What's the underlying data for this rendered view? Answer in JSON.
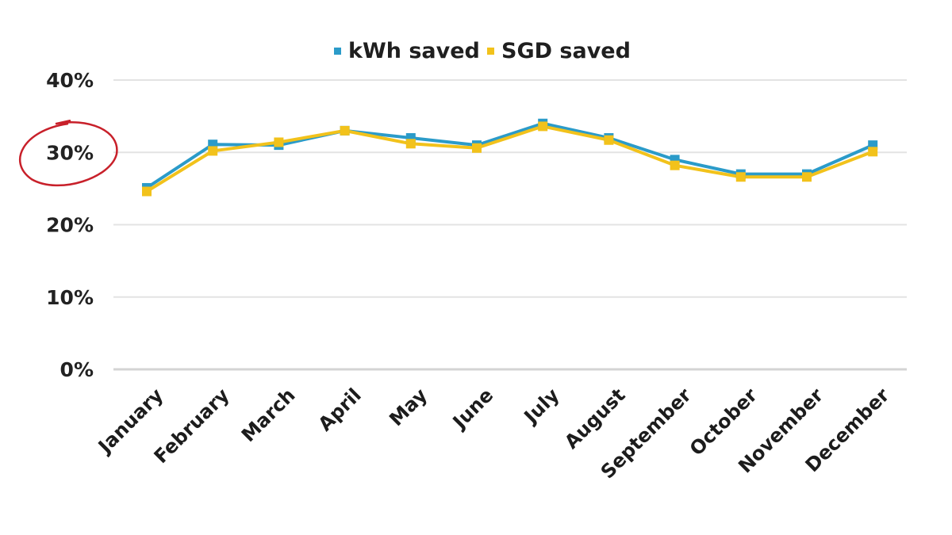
{
  "chart_data": {
    "type": "line",
    "title": "",
    "xlabel": "",
    "ylabel": "",
    "categories": [
      "January",
      "February",
      "March",
      "April",
      "May",
      "June",
      "July",
      "August",
      "September",
      "October",
      "November",
      "December"
    ],
    "series": [
      {
        "name": "kWh saved",
        "color": "#2b9bc9",
        "values": [
          25.1,
          31.1,
          31.0,
          33.0,
          32.0,
          31.0,
          34.0,
          32.0,
          29.0,
          27.0,
          27.0,
          31.0
        ]
      },
      {
        "name": "SGD saved",
        "color": "#f2c21b",
        "values": [
          24.6,
          30.2,
          31.4,
          33.0,
          31.2,
          30.6,
          33.6,
          31.7,
          28.2,
          26.6,
          26.6,
          30.1
        ]
      }
    ],
    "yticks": [
      "0%",
      "10%",
      "20%",
      "30%",
      "40%"
    ],
    "ytick_values": [
      0,
      10,
      20,
      30,
      40
    ],
    "ylim": [
      0,
      40
    ],
    "grid": true,
    "legend": "top-center",
    "annotation": {
      "type": "hand-drawn circle",
      "target_tick": "30%",
      "color": "#c8202a"
    }
  }
}
